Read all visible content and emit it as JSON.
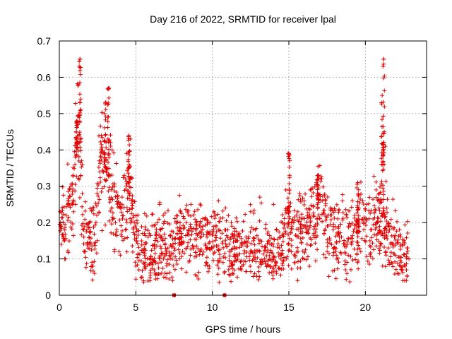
{
  "chart_data": {
    "type": "scatter",
    "title": "Day 216 of 2022, SRMTID for receiver lpal",
    "xlabel": "GPS time / hours",
    "ylabel": "SRMTID / TECUs",
    "xlim": [
      0,
      24
    ],
    "ylim": [
      0,
      0.7
    ],
    "xticks": [
      0,
      5,
      10,
      15,
      20
    ],
    "yticks": [
      0,
      0.1,
      0.2,
      0.3,
      0.4,
      0.5,
      0.6,
      0.7
    ],
    "grid": true,
    "marker": "+",
    "color": "#e00000",
    "series": [
      {
        "name": "SRMTID",
        "profile": [
          [
            0.0,
            0.21
          ],
          [
            0.4,
            0.2
          ],
          [
            0.8,
            0.26
          ],
          [
            1.0,
            0.33
          ],
          [
            1.2,
            0.42
          ],
          [
            1.4,
            0.32
          ],
          [
            1.6,
            0.18
          ],
          [
            1.9,
            0.15
          ],
          [
            2.2,
            0.13
          ],
          [
            2.5,
            0.3
          ],
          [
            2.8,
            0.35
          ],
          [
            3.1,
            0.34
          ],
          [
            3.5,
            0.28
          ],
          [
            3.9,
            0.22
          ],
          [
            4.3,
            0.24
          ],
          [
            4.6,
            0.3
          ],
          [
            4.8,
            0.2
          ],
          [
            5.2,
            0.13
          ],
          [
            6.0,
            0.12
          ],
          [
            7.0,
            0.13
          ],
          [
            8.0,
            0.15
          ],
          [
            9.0,
            0.16
          ],
          [
            10.0,
            0.15
          ],
          [
            11.0,
            0.13
          ],
          [
            12.0,
            0.12
          ],
          [
            13.0,
            0.14
          ],
          [
            14.0,
            0.12
          ],
          [
            14.5,
            0.13
          ],
          [
            15.0,
            0.17
          ],
          [
            15.5,
            0.16
          ],
          [
            16.0,
            0.19
          ],
          [
            16.5,
            0.2
          ],
          [
            17.0,
            0.24
          ],
          [
            17.5,
            0.2
          ],
          [
            18.0,
            0.17
          ],
          [
            19.0,
            0.16
          ],
          [
            19.5,
            0.17
          ],
          [
            20.0,
            0.2
          ],
          [
            20.5,
            0.19
          ],
          [
            21.0,
            0.22
          ],
          [
            21.3,
            0.2
          ],
          [
            21.6,
            0.15
          ],
          [
            22.0,
            0.12
          ],
          [
            22.5,
            0.1
          ],
          [
            22.8,
            0.12
          ]
        ],
        "peaks": [
          [
            1.35,
            0.65
          ],
          [
            1.15,
            0.48
          ],
          [
            3.0,
            0.53
          ],
          [
            3.2,
            0.57
          ],
          [
            4.55,
            0.44
          ],
          [
            15.0,
            0.39
          ],
          [
            16.9,
            0.33
          ],
          [
            21.2,
            0.65
          ],
          [
            21.1,
            0.55
          ],
          [
            19.5,
            0.31
          ]
        ],
        "points": [
          [
            0.05,
            0.23
          ],
          [
            0.12,
            0.19
          ],
          [
            0.25,
            0.16
          ],
          [
            0.35,
            0.1
          ],
          [
            0.45,
            0.22
          ],
          [
            0.6,
            0.26
          ],
          [
            0.75,
            0.3
          ],
          [
            0.9,
            0.33
          ],
          [
            1.05,
            0.38
          ],
          [
            1.1,
            0.45
          ],
          [
            1.2,
            0.47
          ],
          [
            1.25,
            0.58
          ],
          [
            1.3,
            0.63
          ],
          [
            1.35,
            0.65
          ],
          [
            1.4,
            0.54
          ],
          [
            1.45,
            0.37
          ],
          [
            1.5,
            0.28
          ],
          [
            1.6,
            0.16
          ],
          [
            1.7,
            0.12
          ],
          [
            1.8,
            0.18
          ],
          [
            2.0,
            0.14
          ],
          [
            2.2,
            0.08
          ],
          [
            2.3,
            0.06
          ],
          [
            2.45,
            0.22
          ],
          [
            2.6,
            0.37
          ],
          [
            2.75,
            0.44
          ],
          [
            2.85,
            0.34
          ],
          [
            2.95,
            0.5
          ],
          [
            3.05,
            0.53
          ],
          [
            3.15,
            0.49
          ],
          [
            3.25,
            0.57
          ],
          [
            3.35,
            0.42
          ],
          [
            3.45,
            0.4
          ],
          [
            3.6,
            0.3
          ],
          [
            3.75,
            0.18
          ],
          [
            3.9,
            0.12
          ],
          [
            4.1,
            0.27
          ],
          [
            4.25,
            0.33
          ],
          [
            4.4,
            0.39
          ],
          [
            4.5,
            0.35
          ],
          [
            4.65,
            0.43
          ],
          [
            4.75,
            0.24
          ],
          [
            4.9,
            0.2
          ],
          [
            5.05,
            0.15
          ],
          [
            5.2,
            0.07
          ],
          [
            5.4,
            0.05
          ],
          [
            5.6,
            0.09
          ],
          [
            5.8,
            0.16
          ],
          [
            6.0,
            0.09
          ],
          [
            6.2,
            0.07
          ],
          [
            6.4,
            0.2
          ],
          [
            6.55,
            0.25
          ],
          [
            6.8,
            0.1
          ],
          [
            7.1,
            0.13
          ],
          [
            7.4,
            0.04
          ],
          [
            7.5,
            0.0
          ],
          [
            7.7,
            0.17
          ],
          [
            8.0,
            0.14
          ],
          [
            8.3,
            0.2
          ],
          [
            8.6,
            0.25
          ],
          [
            8.9,
            0.18
          ],
          [
            9.2,
            0.12
          ],
          [
            9.5,
            0.21
          ],
          [
            9.8,
            0.08
          ],
          [
            10.1,
            0.23
          ],
          [
            10.4,
            0.26
          ],
          [
            10.7,
            0.09
          ],
          [
            10.8,
            0.0
          ],
          [
            11.0,
            0.18
          ],
          [
            11.3,
            0.06
          ],
          [
            11.6,
            0.13
          ],
          [
            11.9,
            0.07
          ],
          [
            12.2,
            0.16
          ],
          [
            12.5,
            0.23
          ],
          [
            12.8,
            0.18
          ],
          [
            13.1,
            0.27
          ],
          [
            13.4,
            0.1
          ],
          [
            13.7,
            0.15
          ],
          [
            14.0,
            0.25
          ],
          [
            14.2,
            0.06
          ],
          [
            14.4,
            0.16
          ],
          [
            14.6,
            0.2
          ],
          [
            14.8,
            0.29
          ],
          [
            14.95,
            0.39
          ],
          [
            15.05,
            0.33
          ],
          [
            15.2,
            0.19
          ],
          [
            15.4,
            0.09
          ],
          [
            15.6,
            0.12
          ],
          [
            15.8,
            0.21
          ],
          [
            16.0,
            0.26
          ],
          [
            16.2,
            0.19
          ],
          [
            16.4,
            0.29
          ],
          [
            16.6,
            0.22
          ],
          [
            16.8,
            0.31
          ],
          [
            16.95,
            0.33
          ],
          [
            17.1,
            0.26
          ],
          [
            17.3,
            0.17
          ],
          [
            17.5,
            0.12
          ],
          [
            17.7,
            0.24
          ],
          [
            17.9,
            0.18
          ],
          [
            18.1,
            0.11
          ],
          [
            18.3,
            0.16
          ],
          [
            18.5,
            0.26
          ],
          [
            18.7,
            0.07
          ],
          [
            18.9,
            0.19
          ],
          [
            19.1,
            0.14
          ],
          [
            19.3,
            0.22
          ],
          [
            19.5,
            0.31
          ],
          [
            19.7,
            0.12
          ],
          [
            19.9,
            0.18
          ],
          [
            20.1,
            0.25
          ],
          [
            20.3,
            0.15
          ],
          [
            20.5,
            0.21
          ],
          [
            20.7,
            0.29
          ],
          [
            20.9,
            0.26
          ],
          [
            21.05,
            0.53
          ],
          [
            21.15,
            0.63
          ],
          [
            21.2,
            0.65
          ],
          [
            21.3,
            0.41
          ],
          [
            21.4,
            0.24
          ],
          [
            21.5,
            0.13
          ],
          [
            21.7,
            0.09
          ],
          [
            21.9,
            0.16
          ],
          [
            22.1,
            0.06
          ],
          [
            22.3,
            0.14
          ],
          [
            22.45,
            0.04
          ],
          [
            22.6,
            0.08
          ],
          [
            22.75,
            0.13
          ],
          [
            22.85,
            0.1
          ]
        ]
      }
    ]
  }
}
